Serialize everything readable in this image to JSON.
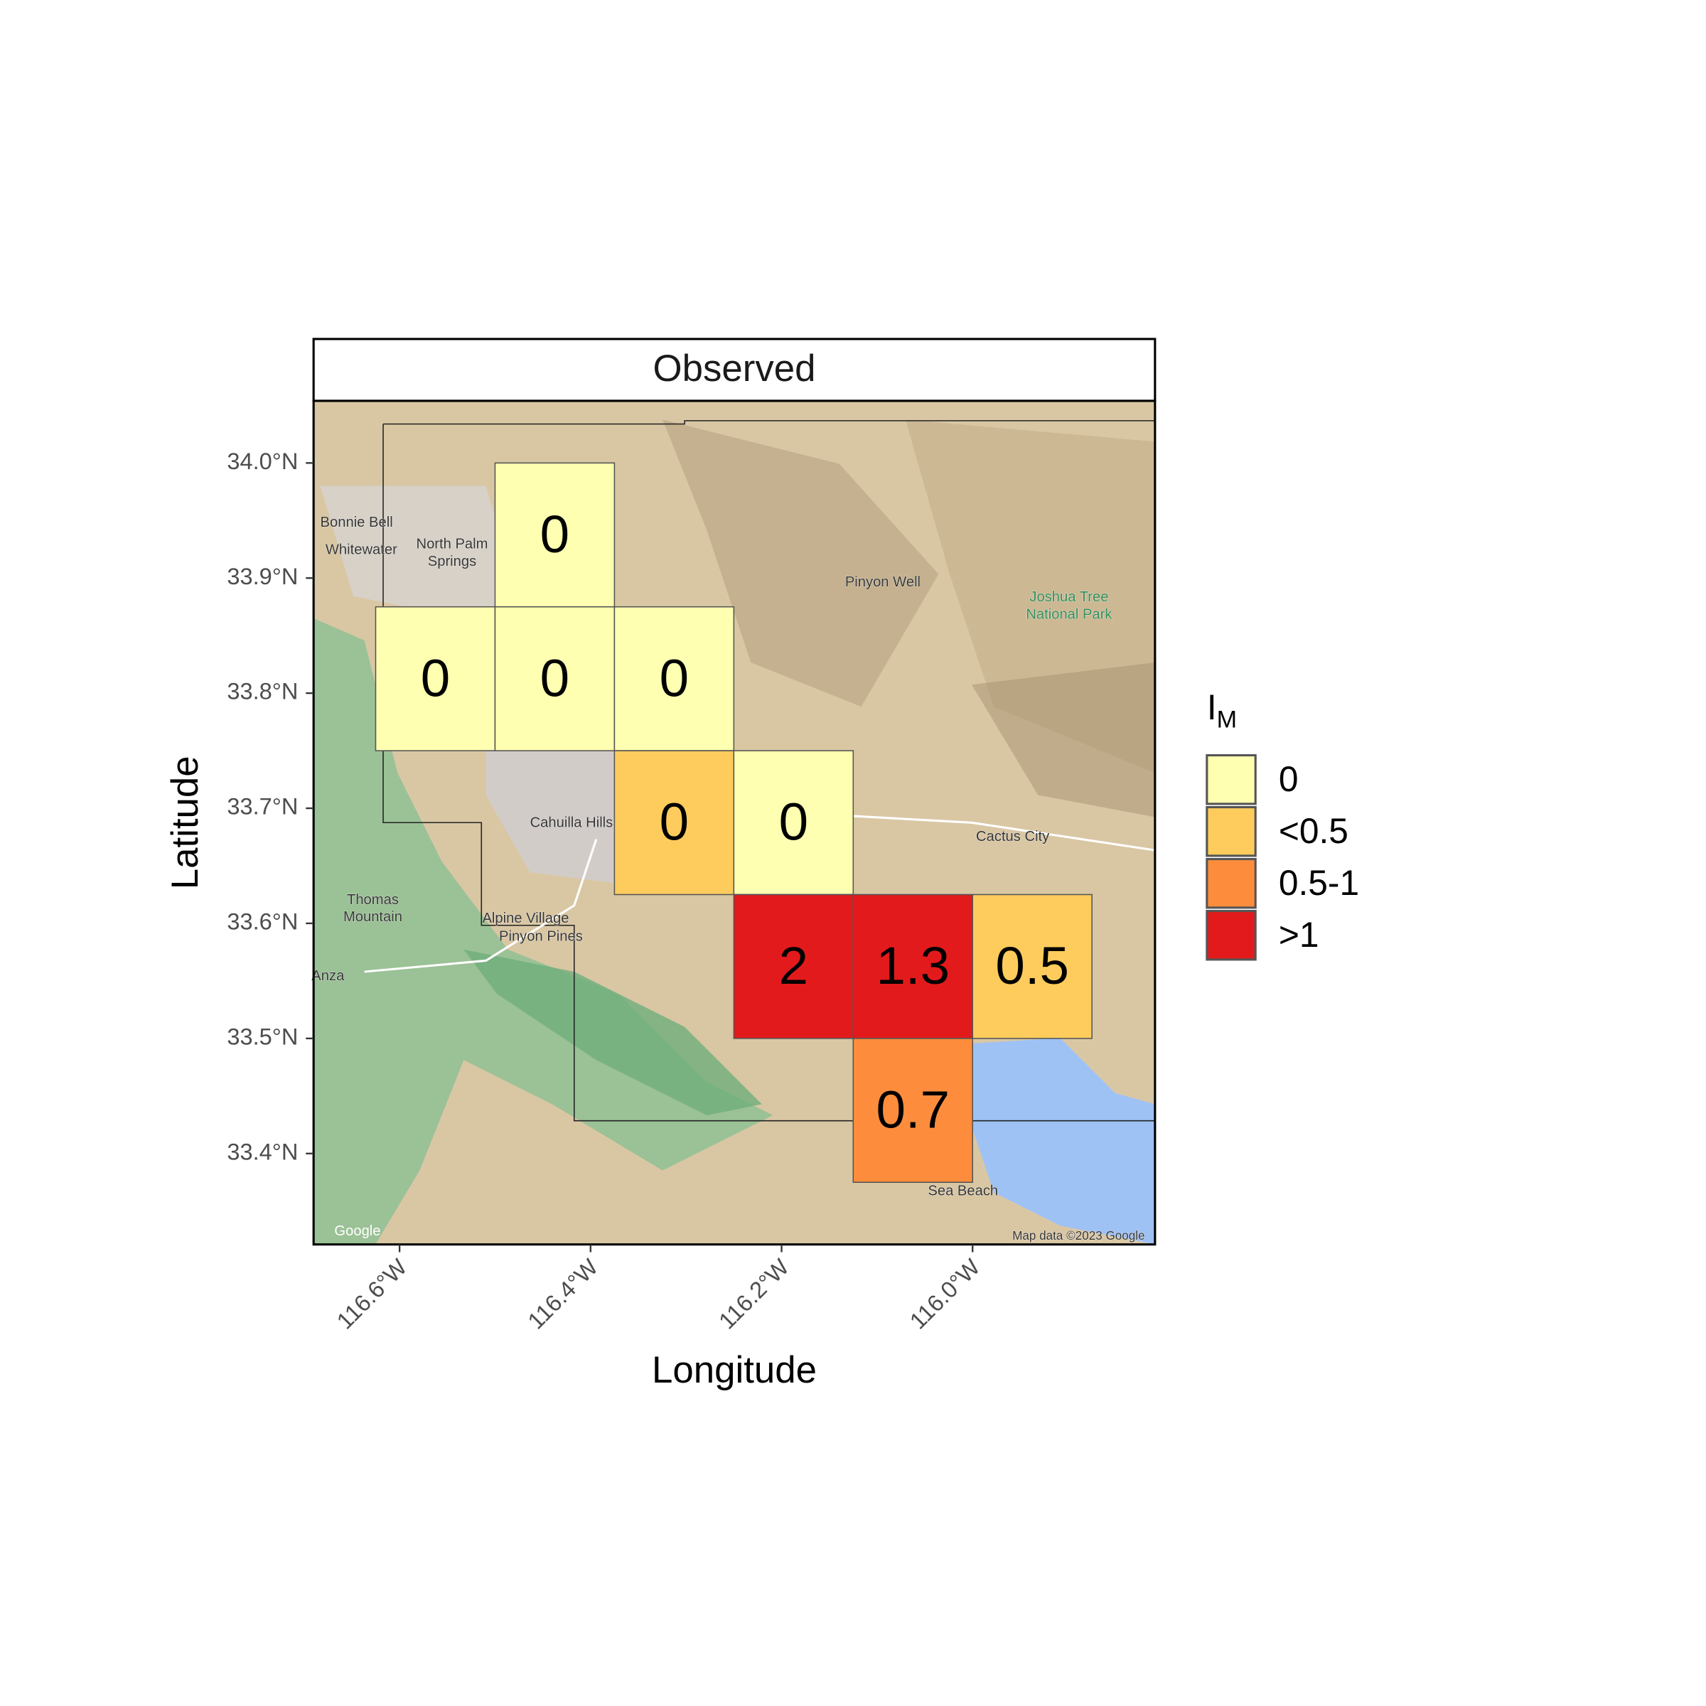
{
  "chart_data": {
    "type": "tile",
    "title": "Observed",
    "x_label": "Longitude",
    "y_label": "Latitude",
    "xlim": [
      -116.69,
      -115.809
    ],
    "ylim": [
      33.321,
      34.054
    ],
    "xticks": [
      {
        "value": -116.6,
        "label": "116.6°W"
      },
      {
        "value": -116.4,
        "label": "116.4°W"
      },
      {
        "value": -116.2,
        "label": "116.2°W"
      },
      {
        "value": -116.0,
        "label": "116.0°W"
      }
    ],
    "yticks": [
      {
        "value": 33.4,
        "label": "33.4°N"
      },
      {
        "value": 33.5,
        "label": "33.5°N"
      },
      {
        "value": 33.6,
        "label": "33.6°N"
      },
      {
        "value": 33.7,
        "label": "33.7°N"
      },
      {
        "value": 33.8,
        "label": "33.8°N"
      },
      {
        "value": 33.9,
        "label": "33.9°N"
      },
      {
        "value": 34.0,
        "label": "34.0°N"
      }
    ],
    "tile_size": [
      0.125,
      0.125
    ],
    "legend_title": "I",
    "legend_title_sub": "M",
    "legend": [
      {
        "name": "0",
        "color": "#ffffb2"
      },
      {
        "name": "<0.5",
        "color": "#fecc5c"
      },
      {
        "name": "0.5-1",
        "color": "#fd8d3c"
      },
      {
        "name": ">1",
        "color": "#e31a1c"
      }
    ],
    "x": [
      -116.4375,
      -116.5625,
      -116.4375,
      -116.3125,
      -116.3125,
      -116.1875,
      -116.1875,
      -116.0625,
      -115.9375,
      -116.0625
    ],
    "y": [
      33.9375,
      33.8125,
      33.8125,
      33.8125,
      33.6875,
      33.6875,
      33.5625,
      33.5625,
      33.5625,
      33.4375
    ],
    "values": [
      0,
      0,
      0,
      0,
      0,
      0,
      2,
      1.3,
      0.5,
      0.7
    ],
    "category": [
      0,
      0,
      0,
      0,
      1,
      0,
      3,
      3,
      1,
      2
    ],
    "map_labels": [
      {
        "text": "Pinyon Well",
        "lon": -116.094,
        "lat": 33.896,
        "color": "#333333"
      },
      {
        "text": "Joshua Tree",
        "lon": -115.899,
        "lat": 33.883,
        "color": "#2e8b57"
      },
      {
        "text": "National Park",
        "lon": -115.899,
        "lat": 33.868,
        "color": "#2e8b57"
      },
      {
        "text": "Cactus City",
        "lon": -115.958,
        "lat": 33.675,
        "color": "#333333"
      },
      {
        "text": "Thomas",
        "lon": -116.628,
        "lat": 33.62,
        "color": "#333333"
      },
      {
        "text": "Mountain",
        "lon": -116.628,
        "lat": 33.605,
        "color": "#333333"
      },
      {
        "text": "Alpine Village",
        "lon": -116.468,
        "lat": 33.604,
        "color": "#333333"
      },
      {
        "text": "Pinyon Pines",
        "lon": -116.452,
        "lat": 33.588,
        "color": "#333333"
      },
      {
        "text": "Anza",
        "lon": -116.675,
        "lat": 33.554,
        "color": "#333333"
      },
      {
        "text": "Sea Beach",
        "lon": -116.01,
        "lat": 33.367,
        "color": "#333333"
      },
      {
        "text": "Bonnie Bell",
        "lon": -116.645,
        "lat": 33.948,
        "color": "#333333"
      },
      {
        "text": "Whitewater",
        "lon": -116.64,
        "lat": 33.924,
        "color": "#333333"
      },
      {
        "text": "North Palm",
        "lon": -116.545,
        "lat": 33.929,
        "color": "#333333"
      },
      {
        "text": "Springs",
        "lon": -116.545,
        "lat": 33.914,
        "color": "#333333"
      },
      {
        "text": "Cahuilla Hills",
        "lon": -116.42,
        "lat": 33.687,
        "color": "#333333"
      },
      {
        "text": "Google",
        "lon": -116.644,
        "lat": 33.332,
        "color": "#ffffff"
      },
      {
        "text": "Map data ©2023 Google",
        "lon": -115.889,
        "lat": 33.328,
        "color": "#333333"
      }
    ]
  }
}
